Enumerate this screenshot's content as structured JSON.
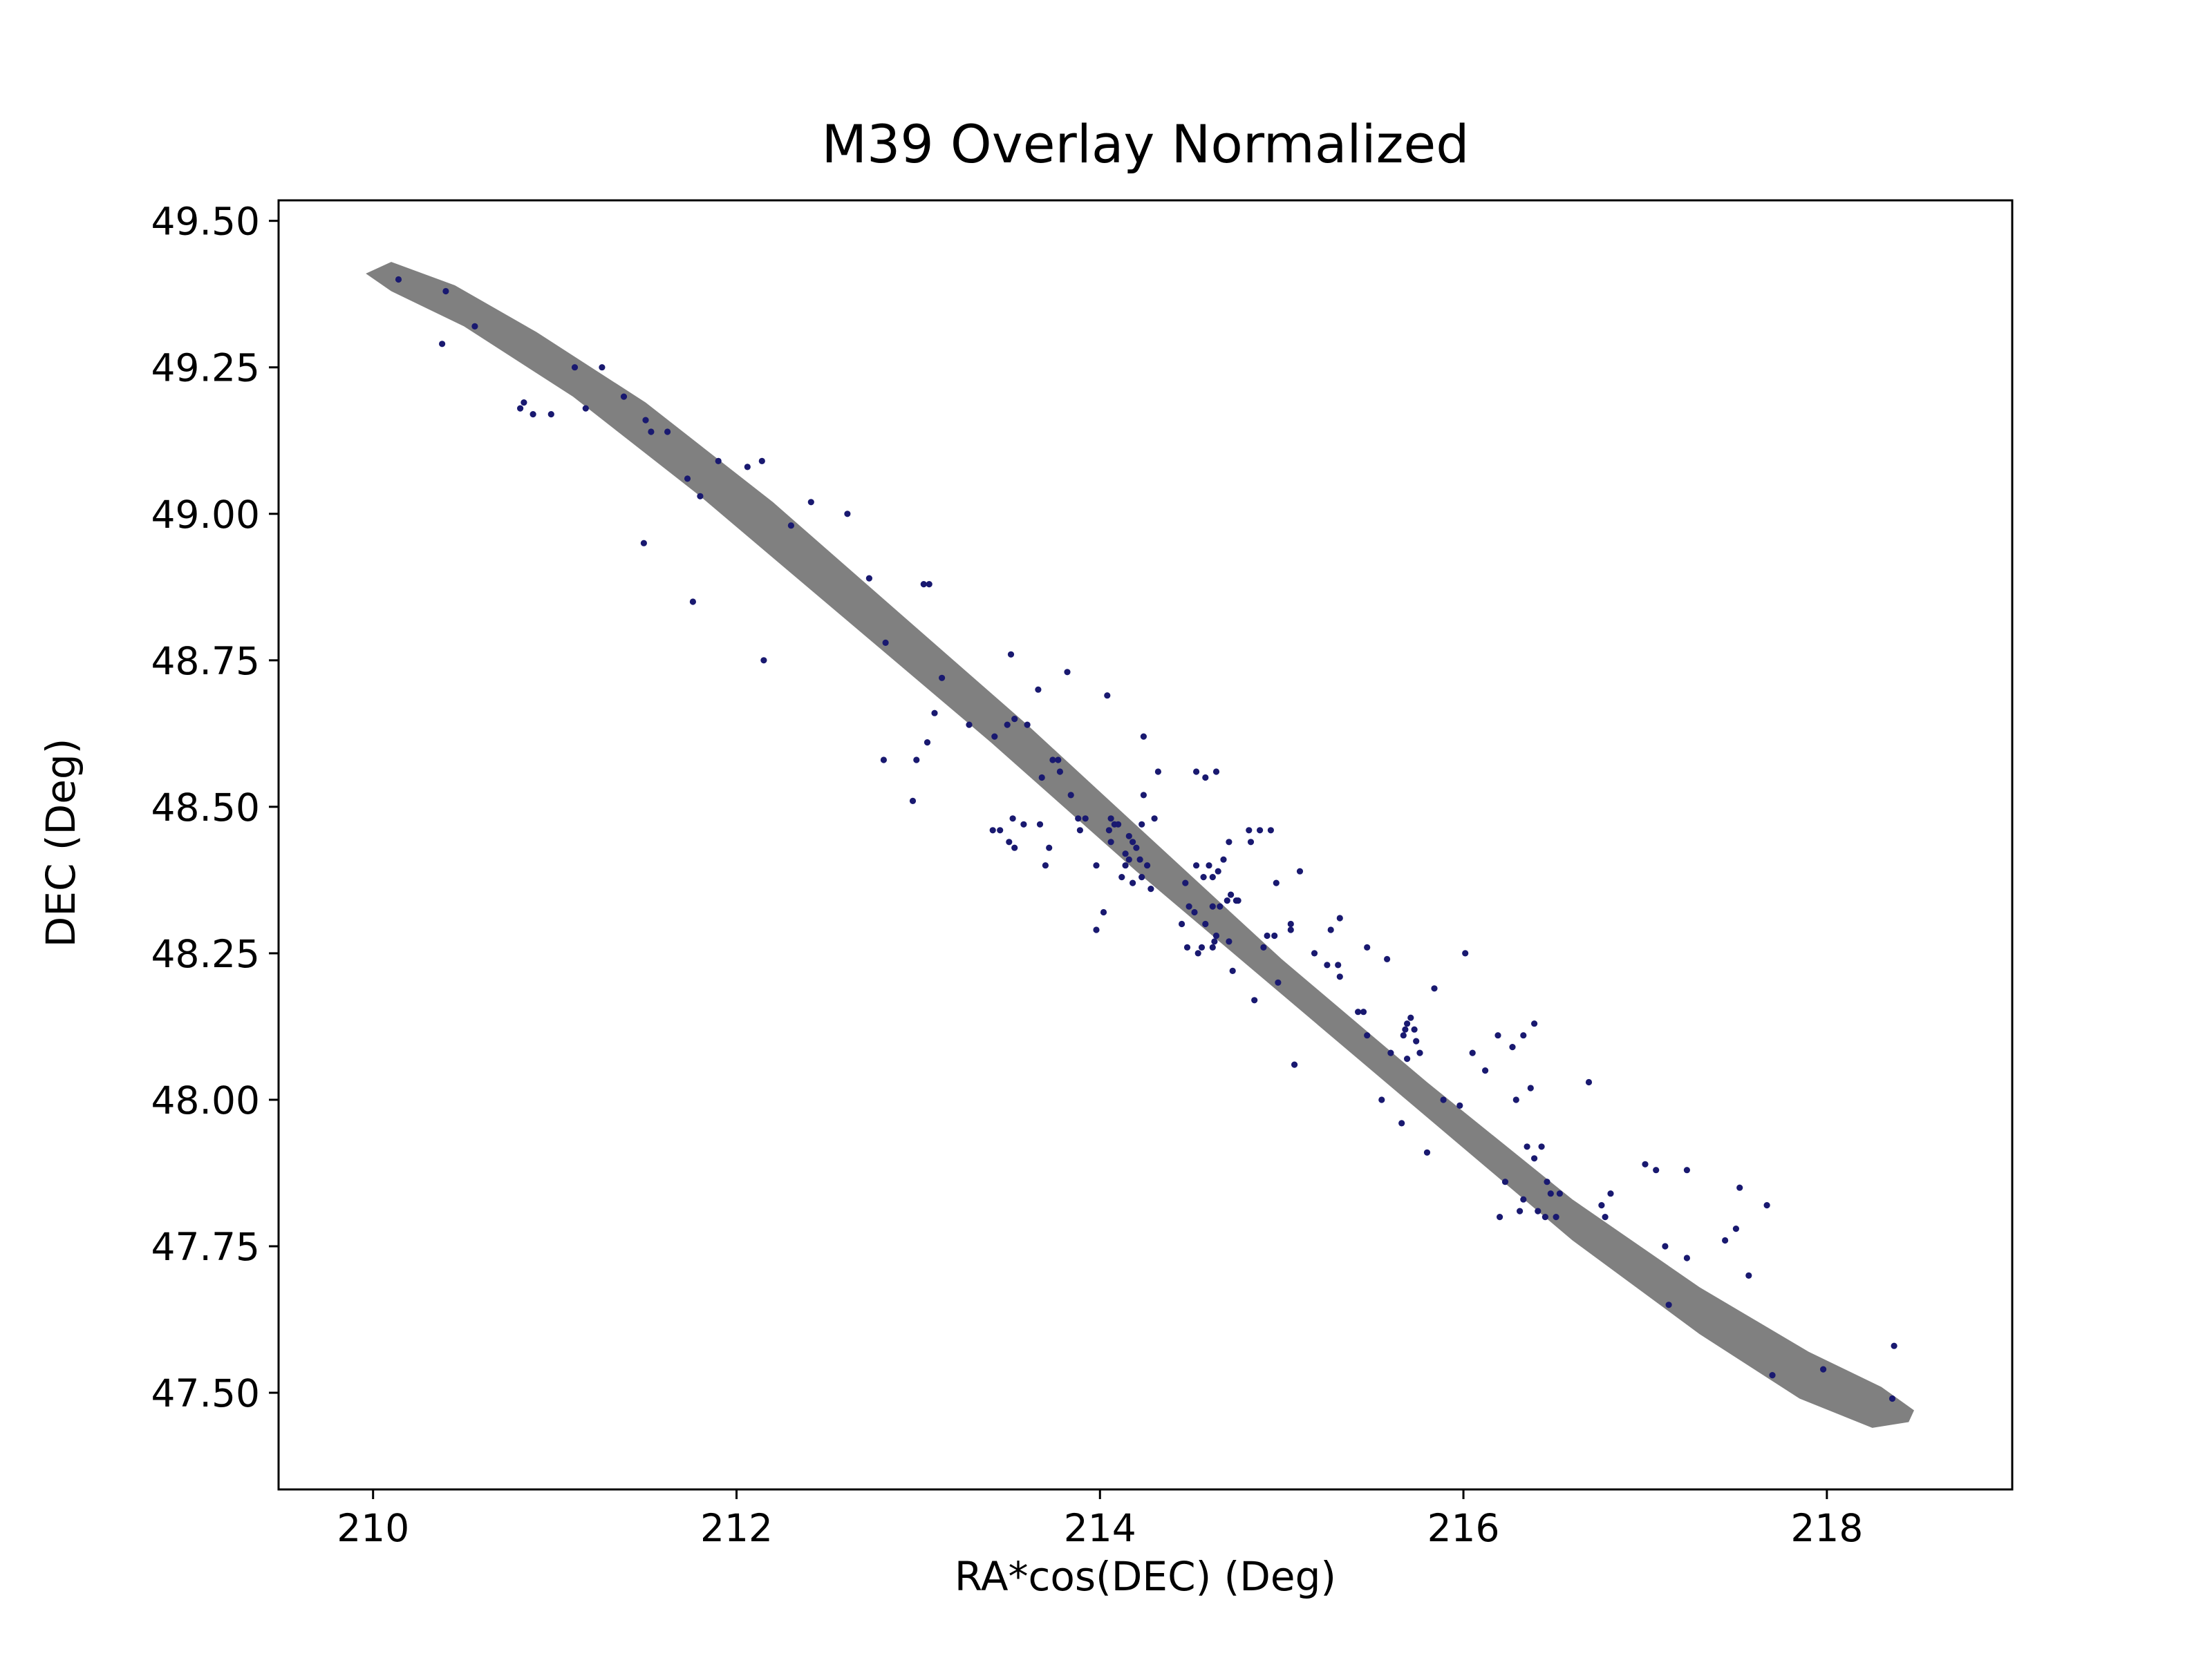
{
  "chart_data": {
    "type": "scatter",
    "title": "M39 Overlay Normalized",
    "xlabel": "RA*cos(DEC) (Deg)",
    "ylabel": "DEC (Deg)",
    "xlim": [
      209.48,
      219.02
    ],
    "ylim": [
      47.335,
      49.535
    ],
    "xticks": [
      210,
      212,
      214,
      216,
      218
    ],
    "xtick_labels": [
      "210",
      "212",
      "214",
      "216",
      "218"
    ],
    "yticks": [
      47.5,
      47.75,
      48.0,
      48.25,
      48.5,
      48.75,
      49.0,
      49.25,
      49.5
    ],
    "ytick_labels": [
      "47.50",
      "47.75",
      "48.00",
      "48.25",
      "48.50",
      "48.75",
      "49.00",
      "49.25",
      "49.50"
    ],
    "grid": false,
    "legend": "none",
    "colors": {
      "points": "#191970",
      "ellipse": "#808080",
      "axes": "#000000",
      "background": "#ffffff"
    },
    "overlay": {
      "shape": "ellipse",
      "path": [
        [
          209.96,
          49.41
        ],
        [
          210.1,
          49.43
        ],
        [
          210.45,
          49.39
        ],
        [
          210.9,
          49.31
        ],
        [
          211.5,
          49.19
        ],
        [
          212.2,
          49.02
        ],
        [
          212.9,
          48.83
        ],
        [
          213.6,
          48.64
        ],
        [
          214.3,
          48.44
        ],
        [
          215.0,
          48.24
        ],
        [
          215.8,
          48.03
        ],
        [
          216.6,
          47.83
        ],
        [
          217.3,
          47.68
        ],
        [
          217.9,
          47.57
        ],
        [
          218.3,
          47.51
        ],
        [
          218.48,
          47.47
        ],
        [
          218.45,
          47.45
        ],
        [
          218.25,
          47.44
        ],
        [
          217.85,
          47.49
        ],
        [
          217.3,
          47.6
        ],
        [
          216.6,
          47.76
        ],
        [
          215.8,
          47.97
        ],
        [
          215.0,
          48.18
        ],
        [
          214.2,
          48.39
        ],
        [
          213.4,
          48.61
        ],
        [
          212.6,
          48.82
        ],
        [
          211.8,
          49.03
        ],
        [
          211.1,
          49.2
        ],
        [
          210.5,
          49.32
        ],
        [
          210.1,
          49.38
        ],
        [
          209.96,
          49.41
        ]
      ]
    },
    "series": [
      {
        "points": [
          [
            210.14,
            49.4
          ],
          [
            210.4,
            49.38
          ],
          [
            210.56,
            49.32
          ],
          [
            210.38,
            49.29
          ],
          [
            211.11,
            49.25
          ],
          [
            211.26,
            49.25
          ],
          [
            210.81,
            49.18
          ],
          [
            210.83,
            49.19
          ],
          [
            210.88,
            49.17
          ],
          [
            210.98,
            49.17
          ],
          [
            211.17,
            49.18
          ],
          [
            211.38,
            49.2
          ],
          [
            211.5,
            49.16
          ],
          [
            211.53,
            49.14
          ],
          [
            211.62,
            49.14
          ],
          [
            211.49,
            48.95
          ],
          [
            211.73,
            49.06
          ],
          [
            211.8,
            49.03
          ],
          [
            211.9,
            49.09
          ],
          [
            212.06,
            49.08
          ],
          [
            212.14,
            49.09
          ],
          [
            212.41,
            49.02
          ],
          [
            212.3,
            48.98
          ],
          [
            212.61,
            49.0
          ],
          [
            211.76,
            48.85
          ],
          [
            212.15,
            48.75
          ],
          [
            212.73,
            48.89
          ],
          [
            213.03,
            48.88
          ],
          [
            213.06,
            48.88
          ],
          [
            212.82,
            48.78
          ],
          [
            213.13,
            48.72
          ],
          [
            213.09,
            48.66
          ],
          [
            213.28,
            48.64
          ],
          [
            212.81,
            48.58
          ],
          [
            212.99,
            48.58
          ],
          [
            213.05,
            48.61
          ],
          [
            212.97,
            48.51
          ],
          [
            213.42,
            48.62
          ],
          [
            213.49,
            48.64
          ],
          [
            213.53,
            48.65
          ],
          [
            213.66,
            48.7
          ],
          [
            213.51,
            48.76
          ],
          [
            213.6,
            48.64
          ],
          [
            213.68,
            48.55
          ],
          [
            213.74,
            48.58
          ],
          [
            213.77,
            48.58
          ],
          [
            213.78,
            48.56
          ],
          [
            213.84,
            48.52
          ],
          [
            213.82,
            48.73
          ],
          [
            214.04,
            48.69
          ],
          [
            213.41,
            48.46
          ],
          [
            213.52,
            48.48
          ],
          [
            213.58,
            48.47
          ],
          [
            213.5,
            48.44
          ],
          [
            213.53,
            48.43
          ],
          [
            213.45,
            48.46
          ],
          [
            213.67,
            48.47
          ],
          [
            213.72,
            48.43
          ],
          [
            213.7,
            48.4
          ],
          [
            213.88,
            48.48
          ],
          [
            213.89,
            48.46
          ],
          [
            213.92,
            48.48
          ],
          [
            214.06,
            48.48
          ],
          [
            214.08,
            48.47
          ],
          [
            214.1,
            48.47
          ],
          [
            214.16,
            48.45
          ],
          [
            214.18,
            48.44
          ],
          [
            214.2,
            48.43
          ],
          [
            214.23,
            48.47
          ],
          [
            214.3,
            48.48
          ],
          [
            214.32,
            48.56
          ],
          [
            214.24,
            48.62
          ],
          [
            214.24,
            48.52
          ],
          [
            214.14,
            48.42
          ],
          [
            214.16,
            48.41
          ],
          [
            214.22,
            48.41
          ],
          [
            214.26,
            48.4
          ],
          [
            214.12,
            48.38
          ],
          [
            214.23,
            48.38
          ],
          [
            214.28,
            48.36
          ],
          [
            214.18,
            48.37
          ],
          [
            213.98,
            48.4
          ],
          [
            214.02,
            48.32
          ],
          [
            213.98,
            48.29
          ],
          [
            214.14,
            48.4
          ],
          [
            214.06,
            48.44
          ],
          [
            214.05,
            48.46
          ],
          [
            214.47,
            48.37
          ],
          [
            214.57,
            48.38
          ],
          [
            214.6,
            48.4
          ],
          [
            214.53,
            48.4
          ],
          [
            214.65,
            48.39
          ],
          [
            214.62,
            48.38
          ],
          [
            214.53,
            48.56
          ],
          [
            214.58,
            48.55
          ],
          [
            214.64,
            48.56
          ],
          [
            214.68,
            48.41
          ],
          [
            214.71,
            48.44
          ],
          [
            214.82,
            48.46
          ],
          [
            214.83,
            48.44
          ],
          [
            214.88,
            48.46
          ],
          [
            214.94,
            48.46
          ],
          [
            214.49,
            48.33
          ],
          [
            214.52,
            48.32
          ],
          [
            214.58,
            48.3
          ],
          [
            214.62,
            48.33
          ],
          [
            214.66,
            48.33
          ],
          [
            214.7,
            48.34
          ],
          [
            214.72,
            48.35
          ],
          [
            214.75,
            48.34
          ],
          [
            214.64,
            48.28
          ],
          [
            214.63,
            48.27
          ],
          [
            214.71,
            48.27
          ],
          [
            214.73,
            48.22
          ],
          [
            214.76,
            48.34
          ],
          [
            214.45,
            48.3
          ],
          [
            214.48,
            48.26
          ],
          [
            214.56,
            48.26
          ],
          [
            214.54,
            48.25
          ],
          [
            214.62,
            48.26
          ],
          [
            214.97,
            48.37
          ],
          [
            215.1,
            48.39
          ],
          [
            214.92,
            48.28
          ],
          [
            214.96,
            48.28
          ],
          [
            214.9,
            48.26
          ],
          [
            215.05,
            48.3
          ],
          [
            215.05,
            48.29
          ],
          [
            215.18,
            48.25
          ],
          [
            215.25,
            48.23
          ],
          [
            215.31,
            48.23
          ],
          [
            215.32,
            48.31
          ],
          [
            215.27,
            48.29
          ],
          [
            214.85,
            48.17
          ],
          [
            214.98,
            48.2
          ],
          [
            215.07,
            48.06
          ],
          [
            215.45,
            48.15
          ],
          [
            215.42,
            48.15
          ],
          [
            215.47,
            48.26
          ],
          [
            215.58,
            48.24
          ],
          [
            215.32,
            48.21
          ],
          [
            215.47,
            48.11
          ],
          [
            215.6,
            48.08
          ],
          [
            215.67,
            48.11
          ],
          [
            215.69,
            48.13
          ],
          [
            215.71,
            48.14
          ],
          [
            215.68,
            48.12
          ],
          [
            215.73,
            48.12
          ],
          [
            215.69,
            48.07
          ],
          [
            215.74,
            48.1
          ],
          [
            215.76,
            48.08
          ],
          [
            215.84,
            48.19
          ],
          [
            215.55,
            48.0
          ],
          [
            215.66,
            47.96
          ],
          [
            215.8,
            47.91
          ],
          [
            215.89,
            48.0
          ],
          [
            215.98,
            47.99
          ],
          [
            216.01,
            48.25
          ],
          [
            216.05,
            48.08
          ],
          [
            216.12,
            48.05
          ],
          [
            216.19,
            48.11
          ],
          [
            216.27,
            48.09
          ],
          [
            216.33,
            48.11
          ],
          [
            216.39,
            48.13
          ],
          [
            216.37,
            48.02
          ],
          [
            216.29,
            48.0
          ],
          [
            216.35,
            47.92
          ],
          [
            216.39,
            47.9
          ],
          [
            216.43,
            47.92
          ],
          [
            216.23,
            47.86
          ],
          [
            216.33,
            47.83
          ],
          [
            216.2,
            47.8
          ],
          [
            216.31,
            47.81
          ],
          [
            216.41,
            47.81
          ],
          [
            216.45,
            47.8
          ],
          [
            216.46,
            47.86
          ],
          [
            216.48,
            47.84
          ],
          [
            216.53,
            47.84
          ],
          [
            216.51,
            47.8
          ],
          [
            216.69,
            48.03
          ],
          [
            216.76,
            47.82
          ],
          [
            216.78,
            47.8
          ],
          [
            216.81,
            47.84
          ],
          [
            217.0,
            47.89
          ],
          [
            217.06,
            47.88
          ],
          [
            217.23,
            47.88
          ],
          [
            217.11,
            47.75
          ],
          [
            217.23,
            47.73
          ],
          [
            217.44,
            47.76
          ],
          [
            217.52,
            47.85
          ],
          [
            217.5,
            47.78
          ],
          [
            217.67,
            47.82
          ],
          [
            217.57,
            47.7
          ],
          [
            217.13,
            47.65
          ],
          [
            217.7,
            47.53
          ],
          [
            217.98,
            47.54
          ],
          [
            218.37,
            47.58
          ],
          [
            218.36,
            47.49
          ]
        ]
      }
    ]
  }
}
